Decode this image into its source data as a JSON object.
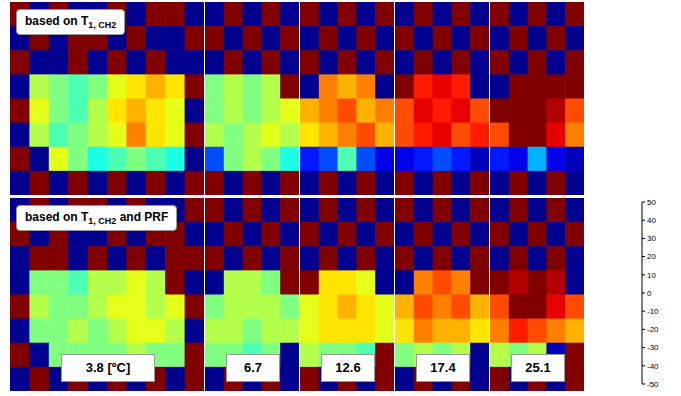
{
  "chart_data": {
    "type": "heatmap",
    "rows": [
      {
        "title": {
          "text": "based on T",
          "subscript": "1, CH2"
        },
        "panels": [
          [
            [
              50,
              -50,
              50,
              -50,
              -50,
              50,
              -50,
              50,
              50,
              -50
            ],
            [
              -50,
              50,
              -50,
              50,
              50,
              -50,
              50,
              -50,
              -50,
              50
            ],
            [
              50,
              -50,
              -50,
              50,
              -50,
              50,
              -50,
              50,
              -50,
              -50
            ],
            [
              -50,
              5,
              0,
              -5,
              0,
              10,
              15,
              20,
              15,
              50
            ],
            [
              50,
              10,
              0,
              -5,
              5,
              15,
              20,
              15,
              10,
              -50
            ],
            [
              -50,
              5,
              -5,
              0,
              5,
              10,
              25,
              15,
              10,
              50
            ],
            [
              50,
              -50,
              10,
              0,
              -10,
              -5,
              0,
              -5,
              -10,
              -50
            ],
            [
              -50,
              50,
              -50,
              50,
              -50,
              50,
              -50,
              50,
              -50,
              50
            ]
          ],
          [
            [
              -50,
              50,
              -50,
              50,
              -50
            ],
            [
              50,
              -50,
              50,
              -50,
              50
            ],
            [
              -50,
              50,
              -50,
              50,
              -50
            ],
            [
              0,
              5,
              0,
              5,
              50
            ],
            [
              0,
              5,
              0,
              5,
              10
            ],
            [
              5,
              0,
              5,
              10,
              5
            ],
            [
              -30,
              0,
              5,
              0,
              -10
            ],
            [
              50,
              -50,
              50,
              -50,
              50
            ]
          ],
          [
            [
              50,
              -50,
              50,
              -50,
              50
            ],
            [
              -50,
              50,
              -50,
              50,
              -50
            ],
            [
              50,
              -50,
              50,
              -50,
              50
            ],
            [
              -50,
              25,
              20,
              25,
              -50
            ],
            [
              20,
              25,
              30,
              20,
              25
            ],
            [
              15,
              20,
              25,
              30,
              20
            ],
            [
              -35,
              -30,
              -5,
              -30,
              -40
            ],
            [
              -50,
              50,
              -50,
              50,
              -50
            ]
          ],
          [
            [
              -50,
              50,
              -50,
              50,
              -50
            ],
            [
              50,
              -50,
              50,
              -50,
              50
            ],
            [
              -50,
              50,
              -50,
              50,
              -50
            ],
            [
              50,
              35,
              40,
              35,
              -50
            ],
            [
              30,
              40,
              35,
              40,
              30
            ],
            [
              30,
              35,
              40,
              30,
              35
            ],
            [
              -40,
              -35,
              -30,
              -35,
              -45
            ],
            [
              50,
              -50,
              50,
              -50,
              50
            ]
          ],
          [
            [
              50,
              -50,
              50,
              -50,
              50
            ],
            [
              -50,
              50,
              -50,
              50,
              -50
            ],
            [
              50,
              -50,
              50,
              -50,
              50
            ],
            [
              -50,
              50,
              50,
              50,
              50
            ],
            [
              50,
              50,
              50,
              45,
              30
            ],
            [
              30,
              50,
              50,
              40,
              25
            ],
            [
              -35,
              -40,
              -20,
              -40,
              -45
            ],
            [
              -50,
              50,
              -50,
              50,
              -50
            ]
          ]
        ]
      },
      {
        "title": {
          "text": "based on T",
          "subscript": "1, CH2",
          "suffix": " and PRF"
        },
        "panels": [
          [
            [
              -50,
              50,
              -50,
              50,
              50,
              -50,
              50,
              -50,
              -50,
              50
            ],
            [
              50,
              -50,
              50,
              -50,
              -50,
              50,
              -50,
              50,
              50,
              -50
            ],
            [
              -50,
              50,
              50,
              -50,
              50,
              -50,
              50,
              -50,
              50,
              50
            ],
            [
              -50,
              0,
              0,
              -5,
              5,
              5,
              10,
              5,
              50,
              -50
            ],
            [
              50,
              5,
              0,
              0,
              5,
              10,
              10,
              5,
              10,
              50
            ],
            [
              -50,
              0,
              0,
              5,
              0,
              5,
              10,
              10,
              5,
              -50
            ],
            [
              50,
              -50,
              0,
              0,
              0,
              0,
              5,
              0,
              0,
              50
            ],
            [
              -50,
              50,
              -50,
              50,
              -50,
              50,
              -50,
              50,
              -50,
              50
            ]
          ],
          [
            [
              50,
              -50,
              50,
              -50,
              50
            ],
            [
              -50,
              50,
              -50,
              50,
              -50
            ],
            [
              50,
              -50,
              50,
              -50,
              50
            ],
            [
              -50,
              5,
              5,
              0,
              50
            ],
            [
              0,
              5,
              5,
              5,
              0
            ],
            [
              5,
              5,
              0,
              5,
              5
            ],
            [
              0,
              0,
              -5,
              0,
              -50
            ],
            [
              -50,
              50,
              -50,
              50,
              -50
            ]
          ],
          [
            [
              -50,
              50,
              -50,
              50,
              -50
            ],
            [
              50,
              -50,
              50,
              -50,
              50
            ],
            [
              -50,
              50,
              -50,
              50,
              -50
            ],
            [
              50,
              15,
              15,
              10,
              -50
            ],
            [
              10,
              15,
              20,
              15,
              10
            ],
            [
              10,
              15,
              15,
              15,
              10
            ],
            [
              5,
              0,
              0,
              -5,
              50
            ],
            [
              50,
              -50,
              50,
              -50,
              50
            ]
          ],
          [
            [
              50,
              -50,
              50,
              -50,
              50
            ],
            [
              -50,
              50,
              -50,
              50,
              -50
            ],
            [
              50,
              -50,
              50,
              -50,
              50
            ],
            [
              -50,
              25,
              30,
              25,
              50
            ],
            [
              20,
              30,
              25,
              30,
              20
            ],
            [
              15,
              25,
              20,
              20,
              15
            ],
            [
              0,
              5,
              0,
              5,
              -50
            ],
            [
              -50,
              50,
              -50,
              50,
              -50
            ]
          ],
          [
            [
              -50,
              50,
              -50,
              50,
              -50
            ],
            [
              50,
              -50,
              50,
              -50,
              50
            ],
            [
              -50,
              50,
              -50,
              50,
              -50
            ],
            [
              50,
              45,
              50,
              45,
              -50
            ],
            [
              30,
              50,
              50,
              40,
              30
            ],
            [
              25,
              35,
              30,
              25,
              20
            ],
            [
              5,
              0,
              5,
              -45,
              50
            ],
            [
              50,
              -50,
              50,
              -50,
              50
            ]
          ]
        ]
      }
    ],
    "panel_labels": [
      "3.8 [ºC]",
      "6.7",
      "12.6",
      "17.4",
      "25.1"
    ],
    "colorbar": {
      "range": [
        -50,
        50
      ],
      "ticks": [
        50,
        40,
        30,
        20,
        10,
        0,
        -10,
        -20,
        -30,
        -40,
        -50
      ]
    }
  }
}
